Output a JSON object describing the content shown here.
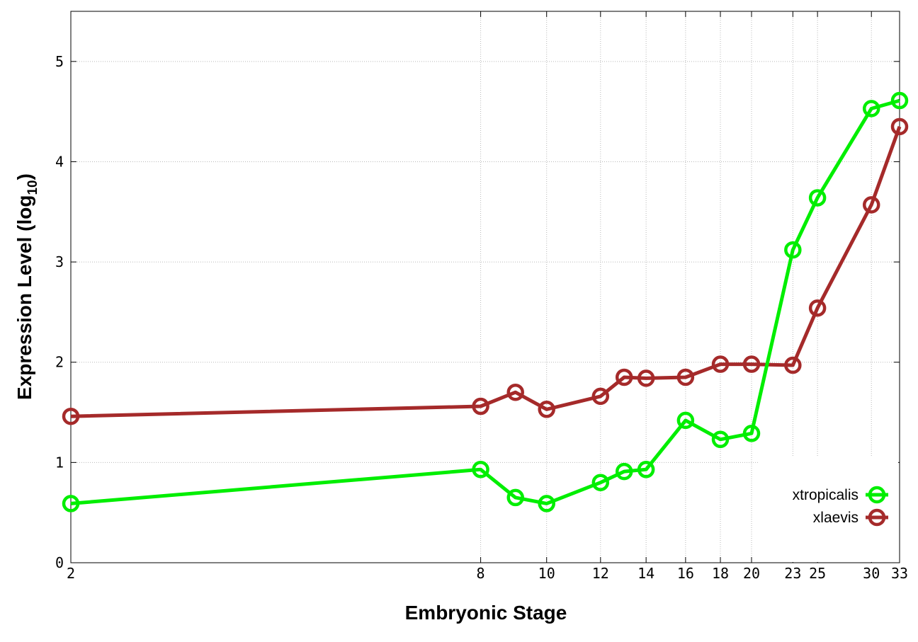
{
  "chart_data": {
    "type": "line",
    "xlabel": "Embryonic Stage",
    "ylabel_main": "Expression Level (log",
    "ylabel_sub": "10",
    "ylabel_close": ")",
    "x_scale": "log",
    "xlim": [
      2,
      33
    ],
    "ylim": [
      0,
      5.5
    ],
    "x_ticks": [
      2,
      8,
      10,
      12,
      14,
      16,
      18,
      20,
      23,
      25,
      30,
      33
    ],
    "x_tick_labels": [
      "2",
      "8",
      "10",
      "12",
      "14",
      "16",
      "18",
      "20",
      "23",
      "25",
      "30",
      "33"
    ],
    "y_ticks": [
      0,
      1,
      2,
      3,
      4,
      5
    ],
    "y_tick_labels": [
      "0",
      "1",
      "2",
      "3",
      "4",
      "5"
    ],
    "grid": true,
    "legend_position": "bottom-right",
    "x": [
      2,
      8,
      9,
      10,
      12,
      13,
      14,
      16,
      18,
      20,
      23,
      25,
      30,
      33
    ],
    "series": [
      {
        "name": "xtropicalis",
        "color": "#00ee00",
        "values": [
          0.59,
          0.93,
          0.65,
          0.59,
          0.8,
          0.91,
          0.93,
          1.42,
          1.23,
          1.29,
          3.12,
          3.64,
          4.53,
          4.61
        ]
      },
      {
        "name": "xlaevis",
        "color": "#a52a2a",
        "values": [
          1.46,
          1.56,
          1.7,
          1.53,
          1.66,
          1.85,
          1.84,
          1.85,
          1.98,
          1.98,
          1.97,
          2.54,
          3.57,
          4.35
        ]
      }
    ]
  }
}
